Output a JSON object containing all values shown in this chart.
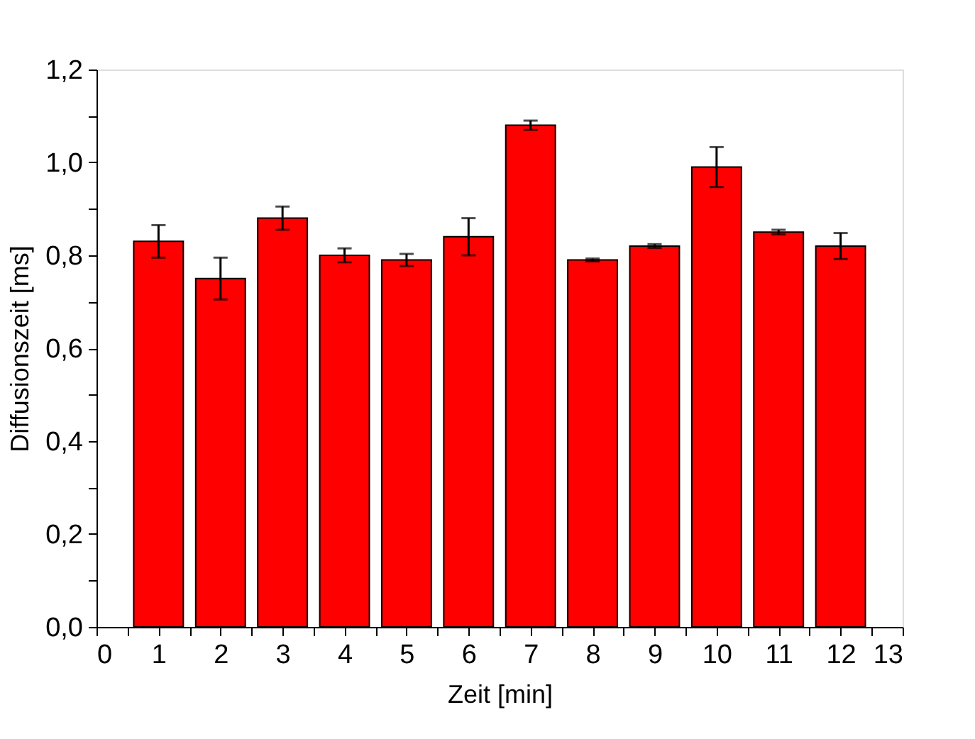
{
  "chart_data": {
    "type": "bar",
    "xlabel": "Zeit [min]",
    "ylabel": "Diffusionszeit [ms]",
    "x": [
      1,
      2,
      3,
      4,
      5,
      6,
      7,
      8,
      9,
      10,
      11,
      12
    ],
    "values": [
      0.83,
      0.75,
      0.88,
      0.8,
      0.79,
      0.84,
      1.08,
      0.79,
      0.82,
      0.99,
      0.85,
      0.82
    ],
    "errors": [
      0.035,
      0.045,
      0.025,
      0.015,
      0.013,
      0.04,
      0.01,
      0.003,
      0.004,
      0.043,
      0.005,
      0.028
    ],
    "color": "#ff0000",
    "xlim": [
      0,
      13
    ],
    "xticks": [
      0,
      {
        "value": 0.5,
        "label": null
      },
      1,
      {
        "value": 1.5,
        "label": null
      },
      2,
      {
        "value": 2.5,
        "label": null
      },
      3,
      {
        "value": 3.5,
        "label": null
      },
      4,
      {
        "value": 4.5,
        "label": null
      },
      5,
      {
        "value": 5.5,
        "label": null
      },
      6,
      {
        "value": 6.5,
        "label": null
      },
      7,
      {
        "value": 7.5,
        "label": null
      },
      8,
      {
        "value": 8.5,
        "label": null
      },
      9,
      {
        "value": 9.5,
        "label": null
      },
      10,
      {
        "value": 10.5,
        "label": null
      },
      11,
      {
        "value": 11.5,
        "label": null
      },
      12,
      {
        "value": 12.5,
        "label": null
      },
      13
    ],
    "ylim": [
      0,
      1.2
    ],
    "yticks": [
      {
        "value": 0,
        "label": "0,0"
      },
      {
        "value": 0.1,
        "label": null
      },
      {
        "value": 0.2,
        "label": "0,2"
      },
      {
        "value": 0.3,
        "label": null
      },
      {
        "value": 0.4,
        "label": "0,4"
      },
      {
        "value": 0.5,
        "label": null
      },
      {
        "value": 0.6,
        "label": "0,6"
      },
      {
        "value": 0.7,
        "label": null
      },
      {
        "value": 0.8,
        "label": "0,8"
      },
      {
        "value": 0.9,
        "label": null
      },
      {
        "value": 1.0,
        "label": "1,0"
      },
      {
        "value": 1.1,
        "label": null
      },
      {
        "value": 1.2,
        "label": "1,2"
      }
    ],
    "grid": false
  }
}
